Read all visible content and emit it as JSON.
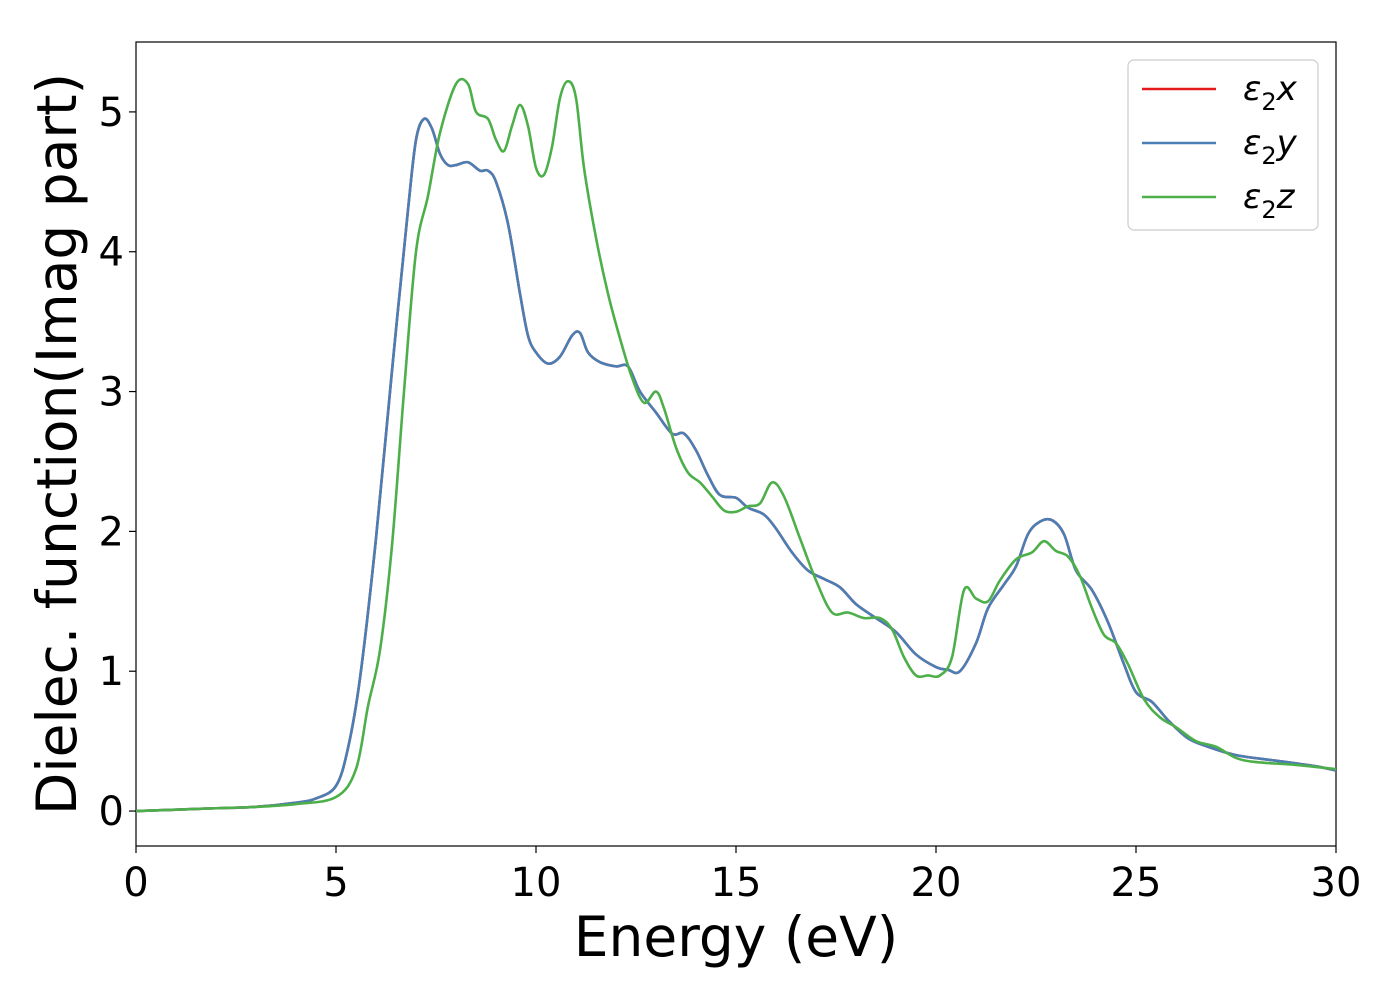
{
  "chart_data": {
    "type": "line",
    "title": "",
    "xlabel": "Energy (eV)",
    "ylabel": "Dielec. function(Imag part)",
    "xlim": [
      0,
      30
    ],
    "ylim": [
      -0.25,
      5.5
    ],
    "xticks": [
      0,
      5,
      10,
      15,
      20,
      25,
      30
    ],
    "yticks": [
      0,
      1,
      2,
      3,
      4,
      5
    ],
    "grid": false,
    "legend_position": "top-right",
    "series": [
      {
        "name": "ε₂x",
        "legend": {
          "base": "ε",
          "sub": "2",
          "axis": "x"
        },
        "color": "#e41a1c",
        "x": [
          0,
          1,
          2,
          3,
          4,
          4.5,
          5,
          5.3,
          5.6,
          6.0,
          6.4,
          6.8,
          7.0,
          7.2,
          7.4,
          7.6,
          7.8,
          8.0,
          8.3,
          8.6,
          8.8,
          9.0,
          9.3,
          9.6,
          9.8,
          10.0,
          10.3,
          10.6,
          10.9,
          11.1,
          11.3,
          11.6,
          12.0,
          12.3,
          12.6,
          13.0,
          13.4,
          13.7,
          14.0,
          14.3,
          14.6,
          15.0,
          15.3,
          15.7,
          16.0,
          16.4,
          16.8,
          17.2,
          17.6,
          18.0,
          18.5,
          19.0,
          19.5,
          20.0,
          20.3,
          20.6,
          21.0,
          21.3,
          21.7,
          22.0,
          22.3,
          22.6,
          22.9,
          23.2,
          23.5,
          23.9,
          24.3,
          24.7,
          25.0,
          25.4,
          25.8,
          26.3,
          26.8,
          27.5,
          28.5,
          29.5,
          30
        ],
        "y": [
          0.0,
          0.01,
          0.02,
          0.03,
          0.06,
          0.09,
          0.18,
          0.45,
          0.95,
          1.95,
          3.15,
          4.3,
          4.8,
          4.95,
          4.88,
          4.7,
          4.62,
          4.62,
          4.64,
          4.58,
          4.58,
          4.5,
          4.2,
          3.7,
          3.4,
          3.28,
          3.2,
          3.25,
          3.4,
          3.42,
          3.28,
          3.21,
          3.18,
          3.18,
          3.0,
          2.85,
          2.7,
          2.7,
          2.58,
          2.4,
          2.26,
          2.24,
          2.17,
          2.12,
          2.02,
          1.85,
          1.72,
          1.66,
          1.6,
          1.48,
          1.38,
          1.28,
          1.12,
          1.03,
          1.01,
          1.0,
          1.2,
          1.45,
          1.62,
          1.75,
          1.98,
          2.07,
          2.08,
          1.98,
          1.72,
          1.58,
          1.35,
          1.05,
          0.85,
          0.78,
          0.65,
          0.52,
          0.46,
          0.4,
          0.36,
          0.32,
          0.29
        ]
      },
      {
        "name": "ε₂y",
        "legend": {
          "base": "ε",
          "sub": "2",
          "axis": "y"
        },
        "color": "#4a7fb5",
        "x": [
          0,
          1,
          2,
          3,
          4,
          4.5,
          5,
          5.3,
          5.6,
          6.0,
          6.4,
          6.8,
          7.0,
          7.2,
          7.4,
          7.6,
          7.8,
          8.0,
          8.3,
          8.6,
          8.8,
          9.0,
          9.3,
          9.6,
          9.8,
          10.0,
          10.3,
          10.6,
          10.9,
          11.1,
          11.3,
          11.6,
          12.0,
          12.3,
          12.6,
          13.0,
          13.4,
          13.7,
          14.0,
          14.3,
          14.6,
          15.0,
          15.3,
          15.7,
          16.0,
          16.4,
          16.8,
          17.2,
          17.6,
          18.0,
          18.5,
          19.0,
          19.5,
          20.0,
          20.3,
          20.6,
          21.0,
          21.3,
          21.7,
          22.0,
          22.3,
          22.6,
          22.9,
          23.2,
          23.5,
          23.9,
          24.3,
          24.7,
          25.0,
          25.4,
          25.8,
          26.3,
          26.8,
          27.5,
          28.5,
          29.5,
          30
        ],
        "y": [
          0.0,
          0.01,
          0.02,
          0.03,
          0.06,
          0.09,
          0.18,
          0.45,
          0.95,
          1.95,
          3.15,
          4.3,
          4.8,
          4.95,
          4.88,
          4.7,
          4.62,
          4.62,
          4.64,
          4.58,
          4.58,
          4.5,
          4.2,
          3.7,
          3.4,
          3.28,
          3.2,
          3.25,
          3.4,
          3.42,
          3.28,
          3.21,
          3.18,
          3.18,
          3.0,
          2.85,
          2.7,
          2.7,
          2.58,
          2.4,
          2.26,
          2.24,
          2.17,
          2.12,
          2.02,
          1.85,
          1.72,
          1.66,
          1.6,
          1.48,
          1.38,
          1.28,
          1.12,
          1.03,
          1.01,
          1.0,
          1.2,
          1.45,
          1.62,
          1.75,
          1.98,
          2.07,
          2.08,
          1.98,
          1.72,
          1.58,
          1.35,
          1.05,
          0.85,
          0.78,
          0.65,
          0.52,
          0.46,
          0.4,
          0.36,
          0.32,
          0.29
        ]
      },
      {
        "name": "ε₂z",
        "legend": {
          "base": "ε",
          "sub": "2",
          "axis": "z"
        },
        "color": "#4daf4a",
        "x": [
          0,
          1,
          2,
          3,
          4,
          5,
          5.5,
          5.8,
          6.1,
          6.4,
          6.7,
          7.0,
          7.3,
          7.6,
          8.0,
          8.3,
          8.5,
          8.8,
          9.0,
          9.2,
          9.4,
          9.6,
          9.8,
          10.0,
          10.2,
          10.4,
          10.6,
          10.8,
          11.0,
          11.2,
          11.5,
          11.8,
          12.1,
          12.4,
          12.7,
          13.0,
          13.2,
          13.5,
          13.8,
          14.1,
          14.4,
          14.7,
          15.0,
          15.3,
          15.6,
          15.9,
          16.2,
          16.6,
          17.0,
          17.4,
          17.8,
          18.2,
          18.6,
          18.9,
          19.2,
          19.5,
          19.8,
          20.1,
          20.4,
          20.7,
          21.0,
          21.3,
          21.6,
          22.0,
          22.4,
          22.7,
          23.0,
          23.3,
          23.6,
          23.9,
          24.2,
          24.5,
          24.8,
          25.2,
          25.6,
          26.0,
          26.5,
          27.0,
          27.5,
          28.0,
          29.0,
          30
        ],
        "y": [
          0.0,
          0.01,
          0.02,
          0.03,
          0.05,
          0.1,
          0.3,
          0.75,
          1.15,
          1.9,
          3.0,
          4.0,
          4.4,
          4.85,
          5.2,
          5.2,
          5.0,
          4.95,
          4.8,
          4.72,
          4.9,
          5.05,
          4.9,
          4.6,
          4.55,
          4.75,
          5.1,
          5.22,
          5.1,
          4.6,
          4.1,
          3.7,
          3.38,
          3.1,
          2.92,
          3.0,
          2.88,
          2.6,
          2.42,
          2.35,
          2.25,
          2.15,
          2.14,
          2.18,
          2.2,
          2.35,
          2.25,
          1.95,
          1.65,
          1.42,
          1.42,
          1.38,
          1.38,
          1.3,
          1.1,
          0.97,
          0.97,
          0.97,
          1.1,
          1.58,
          1.52,
          1.5,
          1.65,
          1.8,
          1.85,
          1.93,
          1.86,
          1.82,
          1.68,
          1.45,
          1.26,
          1.2,
          1.05,
          0.8,
          0.67,
          0.6,
          0.5,
          0.46,
          0.38,
          0.35,
          0.33,
          0.3
        ]
      }
    ]
  }
}
